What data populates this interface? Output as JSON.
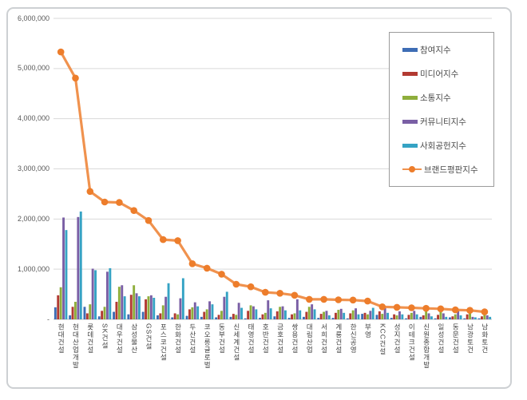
{
  "chart_data": {
    "type": "bar-line-combo",
    "title": "",
    "categories": [
      "현대건설",
      "현대산업개발",
      "롯데건설",
      "SK건설",
      "대우건설",
      "삼성물산",
      "GS건설",
      "포스코건설",
      "한화건설",
      "두산건설",
      "코오롱글로벌",
      "동부건설",
      "신세계건설",
      "태영건설",
      "호반건설",
      "금호건설",
      "쌍용건설",
      "대림산업",
      "서희건설",
      "계룡건설",
      "한신공영",
      "부영",
      "KCC건설",
      "성지건설",
      "이테크건설",
      "신원종합개발",
      "일성건설",
      "동문건설",
      "남광토건",
      "남화토건"
    ],
    "series": [
      {
        "name": "참여지수",
        "type": "bar",
        "color": "#3e6db5",
        "values": [
          240000,
          80000,
          250000,
          60000,
          150000,
          100000,
          150000,
          80000,
          40000,
          70000,
          50000,
          40000,
          50000,
          20000,
          30000,
          60000,
          30000,
          50000,
          30000,
          30000,
          20000,
          110000,
          90000,
          30000,
          20000,
          50000,
          20000,
          40000,
          20000,
          20000
        ]
      },
      {
        "name": "미디어지수",
        "type": "bar",
        "color": "#b23a32",
        "values": [
          480000,
          250000,
          120000,
          170000,
          350000,
          490000,
          400000,
          120000,
          120000,
          200000,
          150000,
          90000,
          110000,
          170000,
          100000,
          160000,
          100000,
          150000,
          110000,
          130000,
          120000,
          130000,
          160000,
          100000,
          90000,
          80000,
          90000,
          60000,
          100000,
          60000
        ]
      },
      {
        "name": "소통지수",
        "type": "bar",
        "color": "#8fae3c",
        "values": [
          640000,
          350000,
          300000,
          250000,
          650000,
          680000,
          460000,
          280000,
          100000,
          240000,
          200000,
          170000,
          90000,
          280000,
          130000,
          250000,
          120000,
          250000,
          150000,
          190000,
          180000,
          100000,
          110000,
          80000,
          130000,
          160000,
          170000,
          100000,
          150000,
          190000
        ]
      },
      {
        "name": "커뮤니티지수",
        "type": "bar",
        "color": "#7a5fa5",
        "values": [
          2030000,
          2040000,
          1010000,
          950000,
          680000,
          520000,
          480000,
          450000,
          420000,
          340000,
          360000,
          450000,
          330000,
          260000,
          380000,
          260000,
          400000,
          300000,
          170000,
          210000,
          220000,
          170000,
          240000,
          160000,
          170000,
          120000,
          120000,
          170000,
          50000,
          80000
        ]
      },
      {
        "name": "사회공헌지수",
        "type": "bar",
        "color": "#35a3c4",
        "values": [
          1780000,
          2150000,
          980000,
          1020000,
          460000,
          460000,
          430000,
          720000,
          820000,
          260000,
          300000,
          550000,
          230000,
          200000,
          220000,
          180000,
          180000,
          200000,
          80000,
          130000,
          100000,
          230000,
          130000,
          100000,
          100000,
          60000,
          50000,
          80000,
          40000,
          50000
        ]
      },
      {
        "name": "브랜드평판지수",
        "type": "line",
        "color": "#ed7d2b",
        "line_color": "#f0924e",
        "values": [
          5330000,
          4810000,
          2550000,
          2340000,
          2330000,
          2170000,
          1970000,
          1590000,
          1570000,
          1110000,
          1020000,
          900000,
          700000,
          650000,
          540000,
          520000,
          480000,
          400000,
          400000,
          390000,
          385000,
          365000,
          250000,
          240000,
          230000,
          220000,
          210000,
          190000,
          180000,
          150000
        ]
      }
    ],
    "y_axis": {
      "min": 0,
      "max": 6000000,
      "step": 1000000,
      "tick_labels": [
        "-",
        "1,000,000",
        "2,000,000",
        "3,000,000",
        "4,000,000",
        "5,000,000",
        "6,000,000"
      ]
    },
    "legend_position": "top-right",
    "grid": "horizontal",
    "gridline_color": "#d9d9d9",
    "axis_line_color": "#c3c3c3"
  }
}
